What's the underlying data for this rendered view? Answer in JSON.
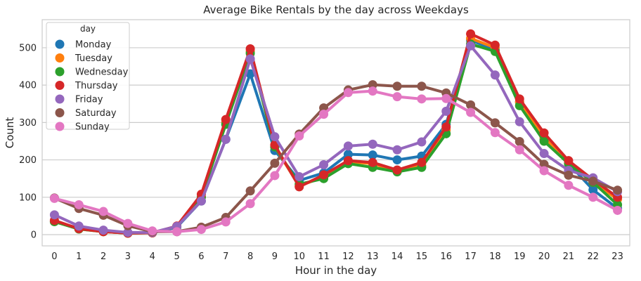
{
  "chart_data": {
    "type": "line",
    "title": "Average Bike Rentals by the day across Weekdays",
    "xlabel": "Hour in the day",
    "ylabel": "Count",
    "x": [
      0,
      1,
      2,
      3,
      4,
      5,
      6,
      7,
      8,
      9,
      10,
      11,
      12,
      13,
      14,
      15,
      16,
      17,
      18,
      19,
      20,
      21,
      22,
      23
    ],
    "ylim": [
      -30,
      575
    ],
    "yticks": [
      0,
      100,
      200,
      300,
      400,
      500
    ],
    "grid": true,
    "legend": {
      "title": "day",
      "placement": "top-left"
    },
    "series": [
      {
        "name": "Monday",
        "color": "#1f77b4",
        "values": [
          35,
          17,
          10,
          5,
          5,
          20,
          90,
          255,
          430,
          225,
          145,
          165,
          215,
          213,
          200,
          210,
          295,
          520,
          495,
          355,
          255,
          190,
          120,
          70
        ]
      },
      {
        "name": "Tuesday",
        "color": "#ff7f0e",
        "values": [
          35,
          15,
          8,
          4,
          5,
          22,
          100,
          300,
          490,
          235,
          130,
          155,
          195,
          190,
          170,
          185,
          280,
          525,
          500,
          355,
          260,
          190,
          140,
          95
        ]
      },
      {
        "name": "Wednesday",
        "color": "#2ca02c",
        "values": [
          35,
          15,
          8,
          4,
          5,
          22,
          100,
          295,
          485,
          235,
          135,
          150,
          190,
          180,
          168,
          180,
          270,
          510,
          490,
          345,
          250,
          190,
          140,
          80
        ]
      },
      {
        "name": "Thursday",
        "color": "#d62728",
        "values": [
          38,
          16,
          8,
          4,
          5,
          23,
          108,
          308,
          497,
          240,
          128,
          160,
          198,
          193,
          173,
          193,
          288,
          537,
          507,
          363,
          272,
          198,
          147,
          100
        ]
      },
      {
        "name": "Friday",
        "color": "#9467bd",
        "values": [
          53,
          23,
          12,
          6,
          6,
          22,
          90,
          255,
          470,
          262,
          155,
          187,
          237,
          242,
          227,
          248,
          330,
          505,
          427,
          302,
          217,
          172,
          152,
          115
        ]
      },
      {
        "name": "Saturday",
        "color": "#8c564b",
        "values": [
          98,
          70,
          52,
          24,
          8,
          8,
          20,
          46,
          117,
          191,
          269,
          339,
          387,
          401,
          397,
          397,
          379,
          347,
          299,
          249,
          188,
          159,
          143,
          119
        ]
      },
      {
        "name": "Sunday",
        "color": "#e377c2",
        "values": [
          97,
          80,
          62,
          30,
          10,
          8,
          14,
          34,
          83,
          158,
          264,
          322,
          380,
          384,
          369,
          363,
          364,
          327,
          273,
          227,
          171,
          132,
          100,
          65
        ]
      }
    ]
  }
}
